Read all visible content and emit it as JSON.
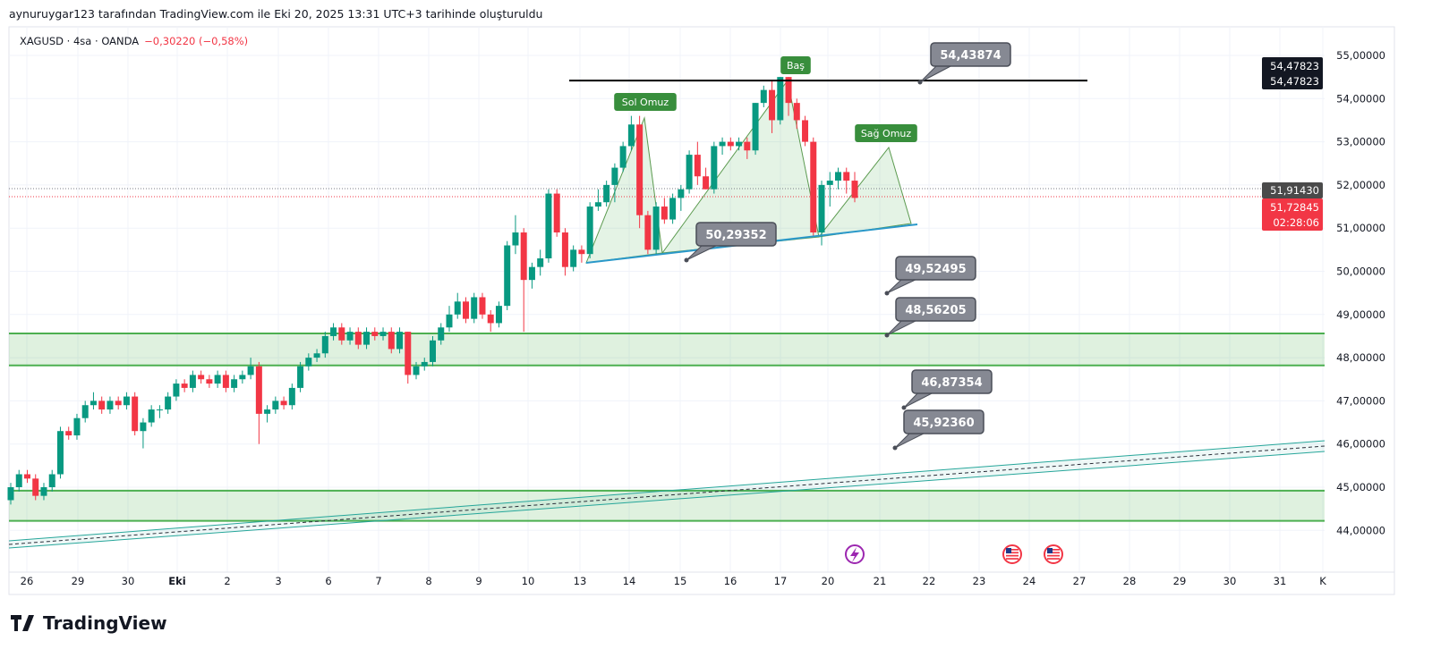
{
  "caption": "aynuruygar123 tarafından TradingView.com ile Eki 20, 2025 13:31 UTC+3 tarihinde oluşturuldu",
  "legend": {
    "symbol": "XAGUSD · 4sa · OANDA",
    "change": "−0,30220 (−0,58%)"
  },
  "logo_text": "TradingView",
  "colors": {
    "up": "#089981",
    "down": "#f23645",
    "zone": "#4caf50",
    "channel": "#26a69a",
    "callout": "#868993"
  },
  "chart_data": {
    "type": "candlestick",
    "symbol": "XAGUSD",
    "timeframe": "4sa",
    "ylim": [
      43.4,
      55.6
    ],
    "y_ticks": [
      "55,00000",
      "54,00000",
      "53,00000",
      "52,00000",
      "51,00000",
      "50,00000",
      "49,00000",
      "48,00000",
      "47,00000",
      "46,00000",
      "45,00000",
      "44,00000"
    ],
    "y_tick_values": [
      55,
      54,
      53,
      52,
      51,
      50,
      49,
      48,
      47,
      46,
      45,
      44
    ],
    "x_ticks": [
      "26",
      "29",
      "30",
      "Eki",
      "2",
      "3",
      "6",
      "7",
      "8",
      "9",
      "10",
      "13",
      "14",
      "15",
      "16",
      "17",
      "20",
      "21",
      "22",
      "23",
      "24",
      "27",
      "28",
      "29",
      "30",
      "31",
      "K"
    ],
    "ohlc": [
      [
        44.7,
        45.1,
        44.6,
        45.0
      ],
      [
        45.0,
        45.4,
        44.9,
        45.3
      ],
      [
        45.3,
        45.4,
        45.1,
        45.2
      ],
      [
        45.2,
        45.3,
        44.7,
        44.8
      ],
      [
        44.8,
        45.1,
        44.7,
        45.0
      ],
      [
        45.0,
        45.4,
        44.9,
        45.3
      ],
      [
        45.3,
        46.4,
        45.2,
        46.3
      ],
      [
        46.3,
        46.4,
        46.1,
        46.2
      ],
      [
        46.2,
        46.7,
        46.1,
        46.6
      ],
      [
        46.6,
        47.0,
        46.5,
        46.9
      ],
      [
        46.9,
        47.2,
        46.8,
        47.0
      ],
      [
        47.0,
        47.1,
        46.7,
        46.8
      ],
      [
        46.8,
        47.1,
        46.7,
        47.0
      ],
      [
        47.0,
        47.1,
        46.8,
        46.9
      ],
      [
        46.9,
        47.2,
        46.8,
        47.1
      ],
      [
        47.1,
        47.2,
        46.2,
        46.3
      ],
      [
        46.3,
        46.6,
        45.9,
        46.5
      ],
      [
        46.5,
        46.9,
        46.4,
        46.8
      ],
      [
        46.8,
        46.9,
        46.6,
        46.8
      ],
      [
        46.8,
        47.2,
        46.7,
        47.1
      ],
      [
        47.1,
        47.5,
        47.0,
        47.4
      ],
      [
        47.4,
        47.5,
        47.2,
        47.3
      ],
      [
        47.3,
        47.7,
        47.2,
        47.6
      ],
      [
        47.6,
        47.7,
        47.4,
        47.5
      ],
      [
        47.5,
        47.6,
        47.3,
        47.4
      ],
      [
        47.4,
        47.7,
        47.3,
        47.6
      ],
      [
        47.6,
        47.7,
        47.2,
        47.3
      ],
      [
        47.3,
        47.6,
        47.2,
        47.5
      ],
      [
        47.5,
        47.7,
        47.4,
        47.6
      ],
      [
        47.6,
        48.0,
        47.5,
        47.8
      ],
      [
        47.8,
        47.9,
        46.0,
        46.7
      ],
      [
        46.7,
        46.9,
        46.5,
        46.8
      ],
      [
        46.8,
        47.1,
        46.7,
        47.0
      ],
      [
        47.0,
        47.1,
        46.8,
        46.9
      ],
      [
        46.9,
        47.4,
        46.8,
        47.3
      ],
      [
        47.3,
        47.9,
        47.2,
        47.8
      ],
      [
        47.8,
        48.1,
        47.7,
        48.0
      ],
      [
        48.0,
        48.2,
        47.9,
        48.1
      ],
      [
        48.1,
        48.6,
        48.0,
        48.5
      ],
      [
        48.5,
        48.8,
        48.4,
        48.7
      ],
      [
        48.7,
        48.8,
        48.3,
        48.4
      ],
      [
        48.4,
        48.7,
        48.3,
        48.6
      ],
      [
        48.6,
        48.7,
        48.2,
        48.3
      ],
      [
        48.3,
        48.7,
        48.2,
        48.6
      ],
      [
        48.6,
        48.7,
        48.4,
        48.5
      ],
      [
        48.5,
        48.7,
        48.4,
        48.6
      ],
      [
        48.6,
        48.7,
        48.1,
        48.2
      ],
      [
        48.2,
        48.7,
        48.1,
        48.6
      ],
      [
        48.6,
        48.6,
        47.4,
        47.6
      ],
      [
        47.6,
        47.9,
        47.5,
        47.8
      ],
      [
        47.8,
        48.0,
        47.7,
        47.9
      ],
      [
        47.9,
        48.5,
        47.8,
        48.4
      ],
      [
        48.4,
        48.8,
        48.3,
        48.7
      ],
      [
        48.7,
        49.2,
        48.6,
        49.0
      ],
      [
        49.0,
        49.5,
        48.9,
        49.3
      ],
      [
        49.3,
        49.4,
        48.8,
        48.9
      ],
      [
        48.9,
        49.5,
        48.8,
        49.4
      ],
      [
        49.4,
        49.5,
        48.9,
        49.0
      ],
      [
        49.0,
        49.1,
        48.6,
        48.8
      ],
      [
        48.8,
        49.3,
        48.7,
        49.2
      ],
      [
        49.2,
        50.7,
        49.1,
        50.6
      ],
      [
        50.6,
        51.3,
        50.4,
        50.9
      ],
      [
        50.9,
        51.0,
        48.6,
        49.8
      ],
      [
        49.8,
        50.2,
        49.6,
        50.1
      ],
      [
        50.1,
        50.5,
        49.9,
        50.3
      ],
      [
        50.3,
        51.9,
        50.2,
        51.8
      ],
      [
        51.8,
        51.9,
        50.8,
        50.9
      ],
      [
        50.9,
        51.0,
        49.9,
        50.1
      ],
      [
        50.1,
        50.6,
        50.0,
        50.5
      ],
      [
        50.5,
        50.6,
        50.2,
        50.4
      ],
      [
        50.4,
        51.6,
        50.3,
        51.5
      ],
      [
        51.5,
        51.9,
        51.4,
        51.6
      ],
      [
        51.6,
        52.1,
        51.5,
        52.0
      ],
      [
        52.0,
        52.5,
        51.6,
        52.4
      ],
      [
        52.4,
        53.0,
        52.3,
        52.9
      ],
      [
        52.9,
        53.6,
        52.8,
        53.4
      ],
      [
        53.4,
        53.6,
        51.0,
        51.3
      ],
      [
        51.3,
        51.4,
        50.4,
        50.5
      ],
      [
        50.5,
        51.6,
        50.4,
        51.5
      ],
      [
        51.5,
        51.7,
        51.1,
        51.2
      ],
      [
        51.2,
        51.8,
        51.1,
        51.7
      ],
      [
        51.7,
        52.0,
        51.4,
        51.9
      ],
      [
        51.9,
        52.8,
        51.8,
        52.7
      ],
      [
        52.7,
        53.0,
        52.0,
        52.2
      ],
      [
        52.2,
        52.4,
        51.9,
        51.9
      ],
      [
        51.9,
        53.0,
        51.8,
        52.9
      ],
      [
        52.9,
        53.1,
        52.7,
        53.0
      ],
      [
        53.0,
        53.1,
        52.8,
        52.9
      ],
      [
        52.9,
        53.1,
        52.8,
        53.0
      ],
      [
        53.0,
        53.1,
        52.6,
        52.8
      ],
      [
        52.8,
        53.9,
        52.7,
        53.9
      ],
      [
        53.9,
        54.3,
        53.8,
        54.2
      ],
      [
        54.2,
        54.4,
        53.2,
        53.5
      ],
      [
        53.5,
        54.5,
        53.4,
        54.5
      ],
      [
        54.5,
        54.5,
        53.6,
        53.9
      ],
      [
        53.9,
        54.0,
        53.3,
        53.5
      ],
      [
        53.5,
        53.6,
        52.9,
        53.0
      ],
      [
        53.0,
        53.1,
        50.8,
        50.9
      ],
      [
        50.9,
        52.1,
        50.6,
        52.0
      ],
      [
        52.0,
        52.3,
        51.5,
        52.1
      ],
      [
        52.1,
        52.4,
        51.9,
        52.3
      ],
      [
        52.3,
        52.4,
        51.8,
        52.1
      ],
      [
        52.1,
        52.3,
        51.6,
        51.7
      ]
    ],
    "zones": [
      [
        47.82,
        48.56
      ],
      [
        44.22,
        44.92
      ]
    ],
    "resistance": 54.43874,
    "price_labels": [
      {
        "text": "54,47823",
        "value": 54.47823,
        "kind": "high"
      },
      {
        "text": "54,47823",
        "value": 54.47823,
        "kind": "high2"
      },
      {
        "text": "51,91430",
        "value": 51.9143,
        "kind": "prev"
      },
      {
        "text": "51,72845",
        "value": 51.72845,
        "kind": "last",
        "countdown": "02:28:06"
      }
    ],
    "callouts": [
      "54,43874",
      "50,29352",
      "49,52495",
      "48,56205",
      "46,87354",
      "45,92360"
    ],
    "pattern_labels": [
      "Sol Omuz",
      "Baş",
      "Sağ Omuz"
    ]
  }
}
